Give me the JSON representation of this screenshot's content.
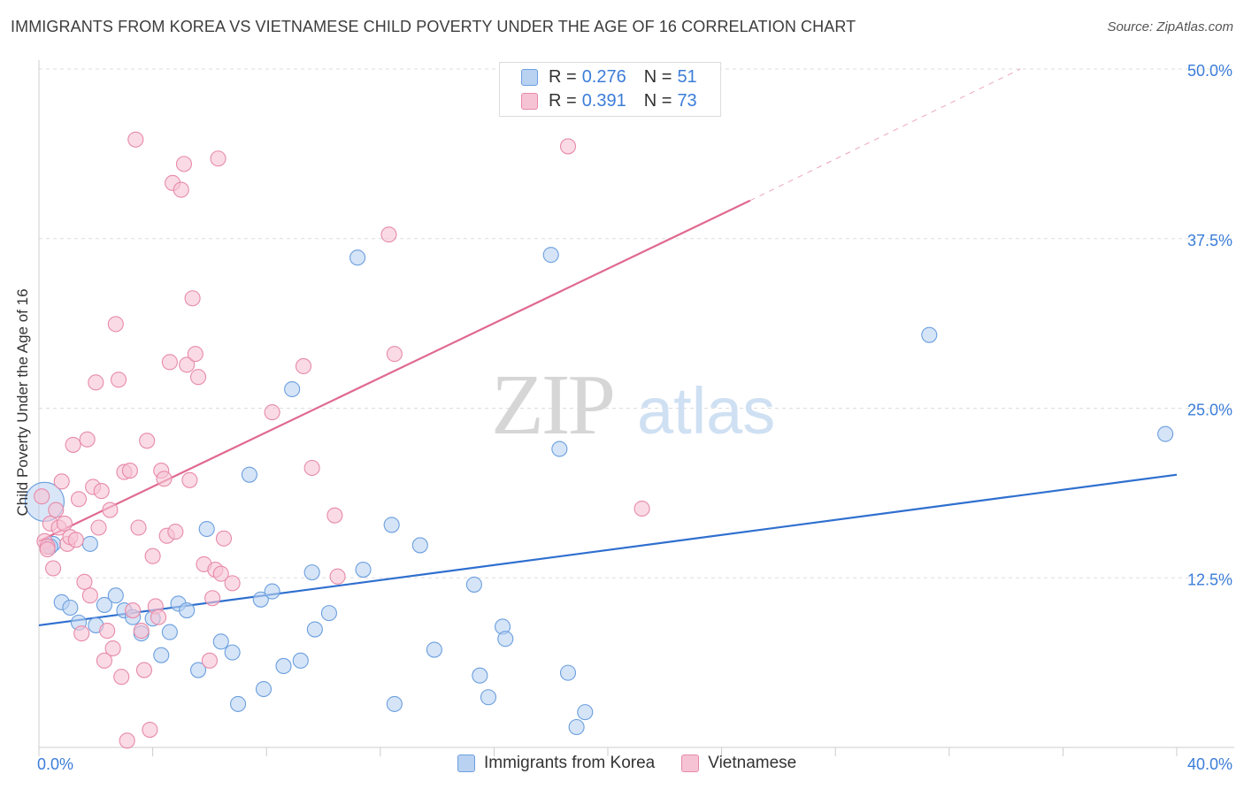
{
  "title": "IMMIGRANTS FROM KOREA VS VIETNAMESE CHILD POVERTY UNDER THE AGE OF 16 CORRELATION CHART",
  "source": "Source: ZipAtlas.com",
  "watermark": {
    "zip": "ZIP",
    "atlas": "atlas"
  },
  "colors": {
    "korea_fill": "#b9d2f2",
    "korea_stroke": "#6b9fdf",
    "korea_line": "#2f6fcf",
    "viet_fill": "#f6c3d4",
    "viet_stroke": "#e78aa9",
    "viet_line": "#e0698f",
    "tick_label": "#3b7dd8",
    "grid": "#dddddd"
  },
  "legend": {
    "rows": [
      {
        "r_label": "R = ",
        "r_value": "0.276",
        "n_label": "N = ",
        "n_value": "51"
      },
      {
        "r_label": "R = ",
        "r_value": "0.391",
        "n_label": "N = ",
        "n_value": "73"
      }
    ]
  },
  "bottom_legend": [
    "Immigrants from Korea",
    "Vietnamese"
  ],
  "chart_data": {
    "type": "scatter",
    "title": "IMMIGRANTS FROM KOREA VS VIETNAMESE CHILD POVERTY UNDER THE AGE OF 16 CORRELATION CHART",
    "xlabel": "",
    "ylabel": "Child Poverty Under the Age of 16",
    "xlim": [
      0,
      40
    ],
    "ylim": [
      0,
      50
    ],
    "x_tick_labels": [
      "0.0%",
      "40.0%"
    ],
    "y_ticks": [
      12.5,
      25.0,
      37.5,
      50.0
    ],
    "y_tick_labels": [
      "12.5%",
      "25.0%",
      "37.5%",
      "50.0%"
    ],
    "grid": true,
    "series": [
      {
        "name": "Immigrants from Korea",
        "r": 0.276,
        "n": 51,
        "trend": {
          "x": [
            0,
            40
          ],
          "y": [
            9.0,
            20.1
          ],
          "style": "solid"
        },
        "points": [
          [
            0.2,
            18.1
          ],
          [
            0.5,
            15.0
          ],
          [
            0.8,
            10.7
          ],
          [
            1.1,
            10.3
          ],
          [
            1.4,
            9.2
          ],
          [
            1.8,
            15.0
          ],
          [
            2.0,
            9.0
          ],
          [
            2.3,
            10.5
          ],
          [
            2.7,
            11.2
          ],
          [
            3.0,
            10.1
          ],
          [
            3.3,
            9.6
          ],
          [
            3.6,
            8.4
          ],
          [
            4.0,
            9.5
          ],
          [
            4.3,
            6.8
          ],
          [
            4.6,
            8.5
          ],
          [
            4.9,
            10.6
          ],
          [
            5.2,
            10.1
          ],
          [
            5.6,
            5.7
          ],
          [
            5.9,
            16.1
          ],
          [
            6.4,
            7.8
          ],
          [
            6.8,
            7.0
          ],
          [
            7.0,
            3.2
          ],
          [
            7.4,
            20.1
          ],
          [
            7.8,
            10.9
          ],
          [
            7.9,
            4.3
          ],
          [
            8.2,
            11.5
          ],
          [
            8.6,
            6.0
          ],
          [
            8.9,
            26.4
          ],
          [
            9.2,
            6.4
          ],
          [
            9.6,
            12.9
          ],
          [
            9.7,
            8.7
          ],
          [
            10.2,
            9.9
          ],
          [
            11.2,
            36.1
          ],
          [
            11.4,
            13.1
          ],
          [
            12.4,
            16.4
          ],
          [
            12.5,
            3.2
          ],
          [
            13.4,
            14.9
          ],
          [
            13.9,
            7.2
          ],
          [
            15.3,
            12.0
          ],
          [
            15.5,
            5.3
          ],
          [
            15.8,
            3.7
          ],
          [
            16.3,
            8.9
          ],
          [
            16.4,
            8.0
          ],
          [
            18.0,
            36.3
          ],
          [
            18.3,
            22.0
          ],
          [
            18.6,
            5.5
          ],
          [
            18.9,
            1.5
          ],
          [
            19.2,
            2.6
          ],
          [
            31.3,
            30.4
          ],
          [
            39.6,
            23.1
          ],
          [
            0.4,
            14.8
          ]
        ]
      },
      {
        "name": "Vietnamese",
        "r": 0.391,
        "n": 73,
        "trend": {
          "x": [
            0,
            25
          ],
          "y": [
            15.2,
            40.3
          ],
          "style": "solid",
          "dashed_to": {
            "x": 34.5,
            "y": 50.0
          }
        },
        "points": [
          [
            0.1,
            18.5
          ],
          [
            0.2,
            15.2
          ],
          [
            0.3,
            14.8
          ],
          [
            0.4,
            16.5
          ],
          [
            0.5,
            13.2
          ],
          [
            0.6,
            17.5
          ],
          [
            0.7,
            16.2
          ],
          [
            0.8,
            19.6
          ],
          [
            0.9,
            16.5
          ],
          [
            1.0,
            15.0
          ],
          [
            1.1,
            15.5
          ],
          [
            1.2,
            22.3
          ],
          [
            1.3,
            15.3
          ],
          [
            1.4,
            18.3
          ],
          [
            1.5,
            8.4
          ],
          [
            1.6,
            12.2
          ],
          [
            1.7,
            22.7
          ],
          [
            1.8,
            11.2
          ],
          [
            1.9,
            19.2
          ],
          [
            2.0,
            26.9
          ],
          [
            2.1,
            16.2
          ],
          [
            2.2,
            18.9
          ],
          [
            2.3,
            6.4
          ],
          [
            2.4,
            8.6
          ],
          [
            2.5,
            17.5
          ],
          [
            2.6,
            7.3
          ],
          [
            2.7,
            31.2
          ],
          [
            2.8,
            27.1
          ],
          [
            2.9,
            5.2
          ],
          [
            3.0,
            20.3
          ],
          [
            3.1,
            0.5
          ],
          [
            3.2,
            20.4
          ],
          [
            3.3,
            10.1
          ],
          [
            3.4,
            44.8
          ],
          [
            3.5,
            16.2
          ],
          [
            3.6,
            8.6
          ],
          [
            3.7,
            5.7
          ],
          [
            3.8,
            22.6
          ],
          [
            3.9,
            1.3
          ],
          [
            4.0,
            14.1
          ],
          [
            4.1,
            10.4
          ],
          [
            4.2,
            9.6
          ],
          [
            4.3,
            20.4
          ],
          [
            4.4,
            19.8
          ],
          [
            4.5,
            15.6
          ],
          [
            4.6,
            28.4
          ],
          [
            4.7,
            41.6
          ],
          [
            4.8,
            15.9
          ],
          [
            5.0,
            41.1
          ],
          [
            5.1,
            43.0
          ],
          [
            5.2,
            28.2
          ],
          [
            5.3,
            19.7
          ],
          [
            5.4,
            33.1
          ],
          [
            5.5,
            29.0
          ],
          [
            5.6,
            27.3
          ],
          [
            5.8,
            13.5
          ],
          [
            6.0,
            6.4
          ],
          [
            6.1,
            11.0
          ],
          [
            6.2,
            13.1
          ],
          [
            6.3,
            43.4
          ],
          [
            6.4,
            12.8
          ],
          [
            6.5,
            15.4
          ],
          [
            6.8,
            12.1
          ],
          [
            8.2,
            24.7
          ],
          [
            9.3,
            28.1
          ],
          [
            9.6,
            20.6
          ],
          [
            10.4,
            17.1
          ],
          [
            10.5,
            12.6
          ],
          [
            12.3,
            37.8
          ],
          [
            12.5,
            29.0
          ],
          [
            18.6,
            44.3
          ],
          [
            21.2,
            17.6
          ],
          [
            0.3,
            14.6
          ]
        ]
      }
    ]
  }
}
